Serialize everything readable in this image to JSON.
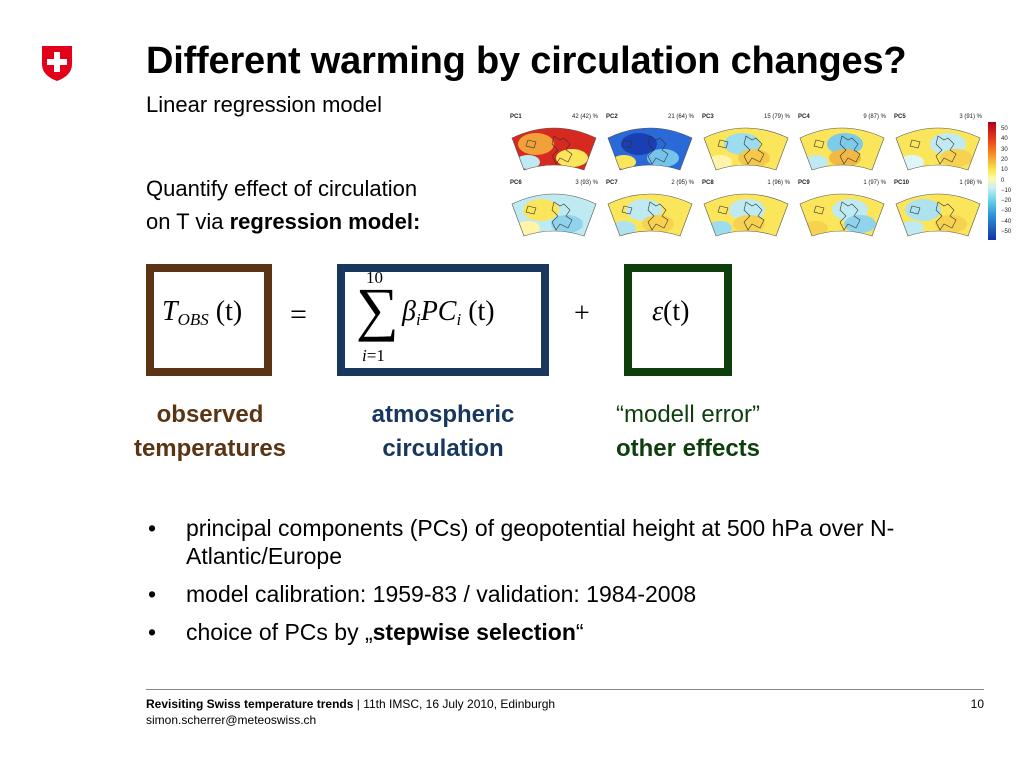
{
  "logo": {
    "icon": "swiss-cross-shield-icon",
    "color": "#e3001b"
  },
  "title": "Different warming by circulation changes?",
  "subtitle": "Linear regression model",
  "quantify": {
    "line1": "Quantify effect of circulation",
    "line2_prefix": "on T via ",
    "line2_bold": "regression model:"
  },
  "pc_maps": [
    {
      "name": "PC1",
      "value": "42 (42) %"
    },
    {
      "name": "PC2",
      "value": "21 (64) %"
    },
    {
      "name": "PC3",
      "value": "15 (79) %"
    },
    {
      "name": "PC4",
      "value": "9 (87) %"
    },
    {
      "name": "PC5",
      "value": "3 (91) %"
    },
    {
      "name": "PC6",
      "value": "3 (93) %"
    },
    {
      "name": "PC7",
      "value": "2 (95) %"
    },
    {
      "name": "PC8",
      "value": "1 (96) %"
    },
    {
      "name": "PC9",
      "value": "1 (97) %"
    },
    {
      "name": "PC10",
      "value": "1 (98) %"
    }
  ],
  "colorbar_labels": [
    "50",
    "40",
    "30",
    "20",
    "10",
    "0",
    "−10",
    "−20",
    "−30",
    "−40",
    "−50"
  ],
  "equation": {
    "lhs_T": "T",
    "lhs_sub": "OBS",
    "lhs_arg": "(t)",
    "equals": "=",
    "sum_upper": "10",
    "sum_symbol": "∑",
    "sum_lower_var": "i",
    "sum_lower_eq": "=1",
    "beta": "β",
    "beta_sub": "i",
    "pc": "PC",
    "pc_sub": "i",
    "pc_arg": "(t)",
    "plus": "+",
    "epsilon": "ε",
    "epsilon_arg": "(t)"
  },
  "labels": {
    "observed": [
      "observed",
      "temperatures"
    ],
    "circulation": [
      "atmospheric",
      "circulation"
    ],
    "error_line1": "“modell error”",
    "error_line2": "other effects"
  },
  "colors": {
    "observed": "#5b3414",
    "circulation": "#17375e",
    "error": "#0d3f0d"
  },
  "bullets": [
    {
      "text": "principal components (PCs) of geopotential height at 500 hPa over N-Atlantic/Europe"
    },
    {
      "text": "model calibration: 1959-83 / validation: 1984-2008"
    },
    {
      "prefix": "choice of PCs by „",
      "bold": "stepwise selection",
      "suffix": "“"
    }
  ],
  "footer": {
    "bold": "Revisiting Swiss temperature trends",
    "rest": " | 11th IMSC, 16 July 2010, Edinburgh",
    "email": "simon.scherrer@meteoswiss.ch",
    "page": "10"
  }
}
